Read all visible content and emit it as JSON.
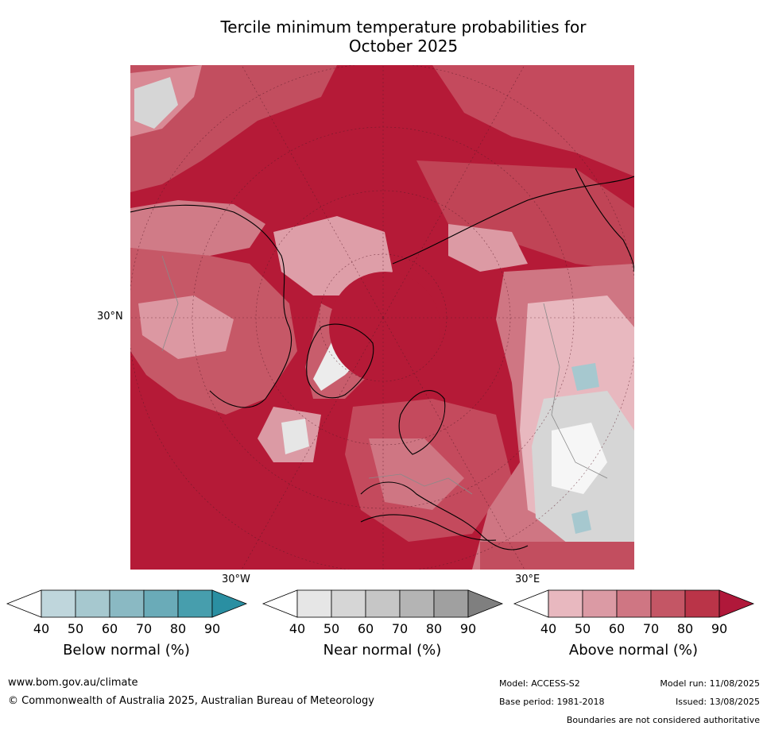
{
  "title_line1": "Tercile minimum temperature probabilities for",
  "title_line2": "October 2025",
  "map": {
    "lat_label": "30°N",
    "lon_left_label": "30°W",
    "lon_right_label": "30°E"
  },
  "colorbars": [
    {
      "label": "Below normal (%)",
      "ticks": [
        "40",
        "50",
        "60",
        "70",
        "80",
        "90"
      ],
      "colors": [
        "#ffffff",
        "#bfd6dc",
        "#a6c8cf",
        "#8ab9c3",
        "#6aabb8",
        "#479ead",
        "#2a8fa2"
      ]
    },
    {
      "label": "Near normal (%)",
      "ticks": [
        "40",
        "50",
        "60",
        "70",
        "80",
        "90"
      ],
      "colors": [
        "#ffffff",
        "#e6e6e6",
        "#d6d6d6",
        "#c6c6c6",
        "#b4b4b4",
        "#a0a0a0",
        "#7f7f7f"
      ]
    },
    {
      "label": "Above normal (%)",
      "ticks": [
        "40",
        "50",
        "60",
        "70",
        "80",
        "90"
      ],
      "colors": [
        "#ffffff",
        "#e8b8bf",
        "#db9aa4",
        "#cf7683",
        "#c45665",
        "#ba3448",
        "#b0183a"
      ]
    }
  ],
  "footer": {
    "website": "www.bom.gov.au/climate",
    "copyright": "© Commonwealth of Australia 2025, Australian Bureau of Meteorology",
    "model": "Model: ACCESS-S2",
    "model_run": "Model run: 11/08/2025",
    "base_period": "Base period: 1981-2018",
    "issued": "Issued: 13/08/2025",
    "disclaimer": "Boundaries are not considered authoritative"
  }
}
